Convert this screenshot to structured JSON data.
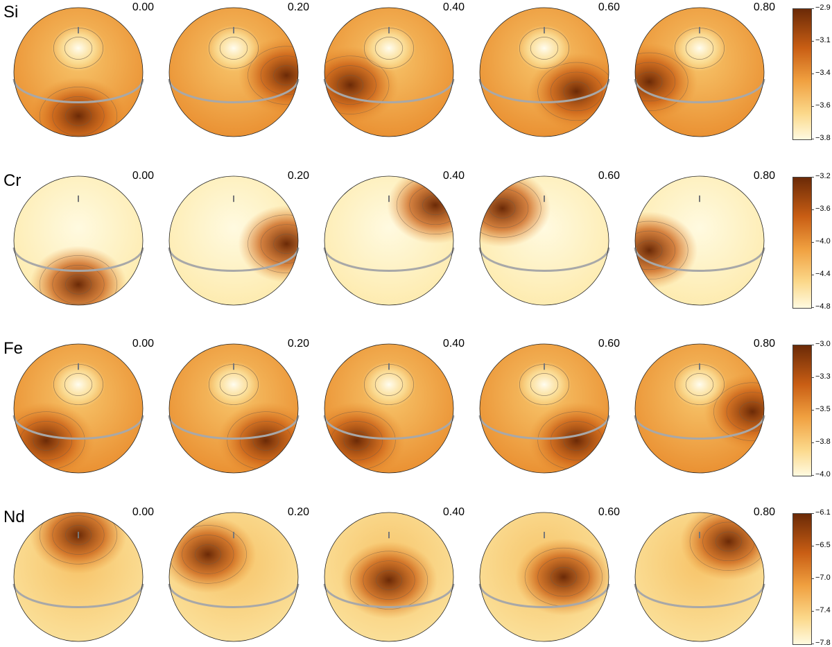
{
  "phases": [
    "0.00",
    "0.20",
    "0.40",
    "0.60",
    "0.80"
  ],
  "rows": [
    {
      "element": "Si",
      "colorbar_ticks": [
        "−2.9",
        "−3.1",
        "−3.4",
        "−3.6",
        "−3.8"
      ],
      "maps": [
        {
          "bright_spot": "top-center",
          "dark_region": "bottom-center"
        },
        {
          "bright_spot": "top-center",
          "dark_region": "right-limb"
        },
        {
          "bright_spot": "top-center",
          "dark_region": "left-mid"
        },
        {
          "bright_spot": "top-center",
          "dark_region": "right-mid"
        },
        {
          "bright_spot": "top-center",
          "dark_region": "left-limb"
        }
      ]
    },
    {
      "element": "Cr",
      "colorbar_ticks": [
        "−3.2",
        "−3.6",
        "−4.0",
        "−4.4",
        "−4.8"
      ],
      "maps": [
        {
          "dark_region": "bottom-center"
        },
        {
          "dark_region": "right-limb"
        },
        {
          "dark_region": "top-right-limb"
        },
        {
          "dark_region": "top-left-limb"
        },
        {
          "dark_region": "left-limb"
        }
      ]
    },
    {
      "element": "Fe",
      "colorbar_ticks": [
        "−3.0",
        "−3.3",
        "−3.5",
        "−3.8",
        "−4.0"
      ],
      "maps": [
        {
          "bright_spot": "top-center",
          "dark_region": "bottom-left"
        },
        {
          "bright_spot": "top-center",
          "dark_region": "bottom-right"
        },
        {
          "bright_spot": "top-center",
          "dark_region": "bottom-left"
        },
        {
          "bright_spot": "top-center",
          "dark_region": "bottom-right"
        },
        {
          "bright_spot": "top-center",
          "dark_region": "right-limb"
        }
      ]
    },
    {
      "element": "Nd",
      "colorbar_ticks": [
        "−6.1",
        "−6.5",
        "−7.0",
        "−7.4",
        "−7.8"
      ],
      "maps": [
        {
          "dark_region": "top"
        },
        {
          "dark_region": "upper-left"
        },
        {
          "dark_region": "center"
        },
        {
          "dark_region": "center-right"
        },
        {
          "dark_region": "upper-right"
        }
      ]
    }
  ],
  "colors": {
    "dark": "#6b2a07",
    "mid": "#e8892a",
    "light": "#fffae0",
    "ring": "#a8a8a8",
    "contour": "#6a5a4a"
  }
}
